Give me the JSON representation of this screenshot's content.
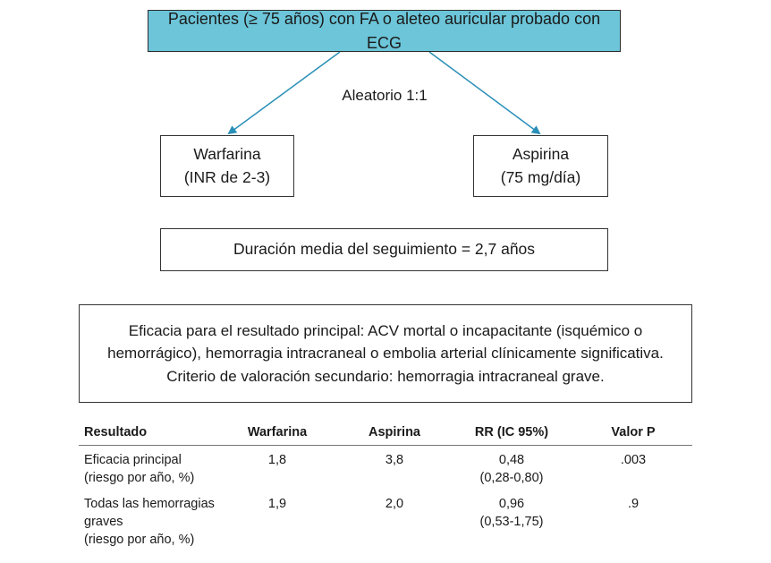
{
  "top_box": {
    "text": "Pacientes (≥ 75 años) con FA o aleteo auricular probado con ECG"
  },
  "randomization_label": "Aleatorio 1:1",
  "arms": [
    {
      "line1": "Warfarina",
      "line2": "(INR de 2-3)"
    },
    {
      "line1": "Aspirina",
      "line2": "(75 mg/día)"
    }
  ],
  "followup": "Duración media del seguimiento = 2,7 años",
  "outcomes": {
    "line1": "Eficacia para el resultado principal: ACV mortal o incapacitante (isquémico o",
    "line2": "hemorrágico), hemorragia intracraneal o embolia arterial clínicamente significativa.",
    "line3": "Criterio de valoración secundario: hemorragia intracraneal grave."
  },
  "table": {
    "headers": [
      "Resultado",
      "Warfarina",
      "Aspirina",
      "RR (IC 95%)",
      "Valor P"
    ],
    "rows": [
      {
        "outcome": [
          "Eficacia principal",
          "(riesgo por año, %)"
        ],
        "warfarina": "1,8",
        "aspirina": "3,8",
        "rr": "0,48",
        "ci": "(0,28-0,80)",
        "p": ".003"
      },
      {
        "outcome": [
          "Todas las hemorragias",
          "graves",
          "(riesgo por año, %)"
        ],
        "warfarina": "1,9",
        "aspirina": "2,0",
        "rr": "0,96",
        "ci": "(0,53-1,75)",
        "p": ".9"
      }
    ]
  },
  "colors": {
    "top_box_fill": "#6cc5d8",
    "arrow": "#2a8fb8"
  }
}
